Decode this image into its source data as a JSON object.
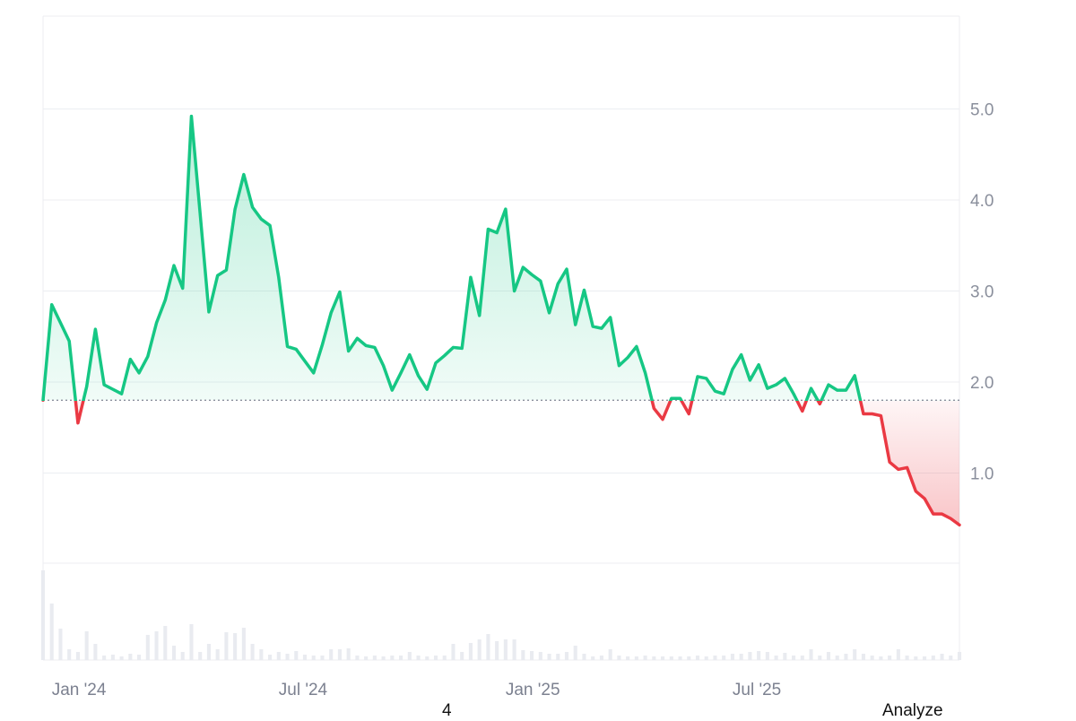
{
  "chart_data": {
    "type": "area",
    "baseline": 1.8,
    "ylim": [
      0,
      6
    ],
    "y_ticks": [
      {
        "value": 1.0,
        "label": "1.0"
      },
      {
        "value": 2.0,
        "label": "2.0"
      },
      {
        "value": 3.0,
        "label": "3.0"
      },
      {
        "value": 4.0,
        "label": "4.0"
      },
      {
        "value": 5.0,
        "label": "5.0"
      }
    ],
    "x_ticks": [
      {
        "index": 1,
        "label": "Jan '24"
      },
      {
        "index": 27,
        "label": "Jul '24"
      },
      {
        "index": 53,
        "label": "Jan '25"
      },
      {
        "index": 79,
        "label": "Jul '25"
      }
    ],
    "colors": {
      "up": "#16c784",
      "down": "#ea3943",
      "volume": "#e9ebf0",
      "grid": "#eceef2",
      "baseline": "#8a8f9c"
    },
    "values": [
      1.8,
      2.85,
      2.65,
      2.45,
      1.55,
      1.95,
      2.58,
      1.97,
      1.92,
      1.87,
      2.25,
      2.1,
      2.28,
      2.65,
      2.9,
      3.28,
      3.03,
      4.92,
      3.85,
      2.77,
      3.17,
      3.23,
      3.9,
      4.28,
      3.92,
      3.79,
      3.72,
      3.15,
      2.39,
      2.36,
      2.23,
      2.1,
      2.41,
      2.76,
      2.99,
      2.34,
      2.48,
      2.4,
      2.38,
      2.18,
      1.91,
      2.1,
      2.3,
      2.07,
      1.92,
      2.21,
      2.29,
      2.38,
      2.37,
      3.15,
      2.73,
      3.68,
      3.64,
      3.9,
      3.0,
      3.26,
      3.18,
      3.11,
      2.76,
      3.08,
      3.24,
      2.63,
      3.01,
      2.61,
      2.59,
      2.71,
      2.18,
      2.27,
      2.39,
      2.1,
      1.71,
      1.59,
      1.82,
      1.82,
      1.65,
      2.06,
      2.04,
      1.9,
      1.87,
      2.14,
      2.3,
      2.02,
      2.19,
      1.93,
      1.97,
      2.04,
      1.87,
      1.68,
      1.93,
      1.76,
      1.97,
      1.91,
      1.91,
      2.07,
      1.65,
      1.65,
      1.63,
      1.12,
      1.04,
      1.06,
      0.8,
      0.72,
      0.55,
      0.55,
      0.5,
      0.43
    ],
    "volume": [
      1.0,
      0.63,
      0.35,
      0.12,
      0.09,
      0.32,
      0.18,
      0.05,
      0.06,
      0.04,
      0.07,
      0.06,
      0.28,
      0.32,
      0.38,
      0.16,
      0.09,
      0.4,
      0.09,
      0.18,
      0.12,
      0.31,
      0.3,
      0.36,
      0.18,
      0.12,
      0.06,
      0.09,
      0.07,
      0.1,
      0.06,
      0.05,
      0.05,
      0.12,
      0.12,
      0.13,
      0.05,
      0.04,
      0.05,
      0.04,
      0.05,
      0.05,
      0.09,
      0.05,
      0.04,
      0.05,
      0.05,
      0.18,
      0.09,
      0.19,
      0.23,
      0.29,
      0.21,
      0.23,
      0.23,
      0.11,
      0.1,
      0.09,
      0.07,
      0.07,
      0.09,
      0.16,
      0.07,
      0.04,
      0.05,
      0.12,
      0.05,
      0.04,
      0.04,
      0.05,
      0.04,
      0.04,
      0.04,
      0.04,
      0.04,
      0.05,
      0.04,
      0.05,
      0.05,
      0.07,
      0.07,
      0.09,
      0.1,
      0.09,
      0.05,
      0.08,
      0.05,
      0.05,
      0.12,
      0.05,
      0.09,
      0.05,
      0.07,
      0.12,
      0.07,
      0.05,
      0.04,
      0.05,
      0.12,
      0.05,
      0.04,
      0.04,
      0.05,
      0.07,
      0.05,
      0.09
    ]
  },
  "footer": {
    "page_number": "4",
    "analyze_label": "Analyze"
  }
}
